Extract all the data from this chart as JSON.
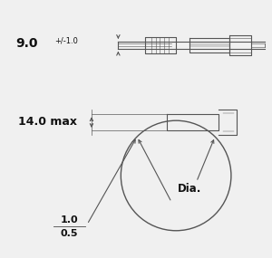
{
  "bg_color": "#f0f0f0",
  "line_color": "#555555",
  "text_color": "#111111",
  "top_dim_label": "9.0",
  "top_dim_tol": "+/-1.0",
  "band_label": "14.0 max",
  "dia_label": "Dia.",
  "bot_dim_top": "1.0",
  "bot_dim_bot": "0.5"
}
